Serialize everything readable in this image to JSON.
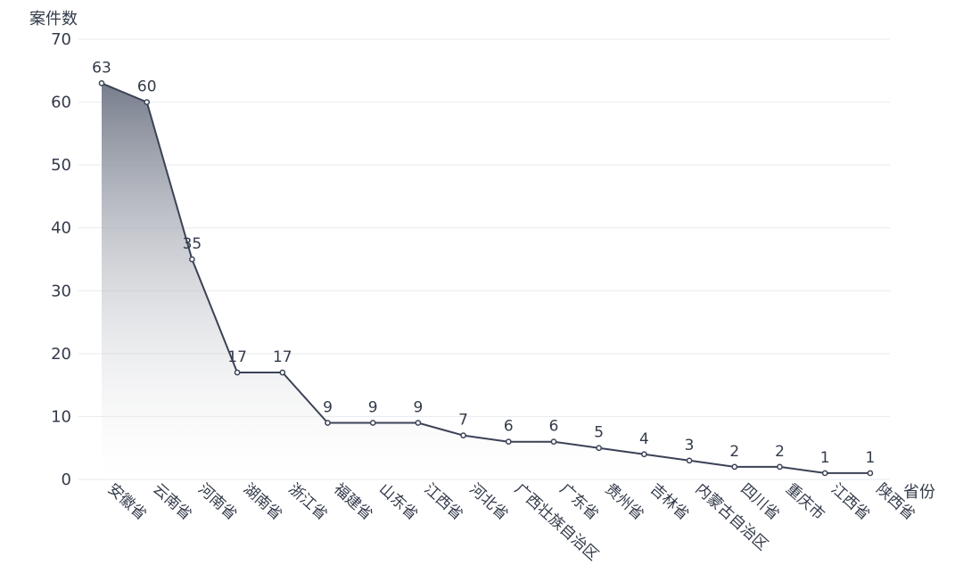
{
  "chart_data": {
    "type": "area",
    "title": "",
    "xlabel": "省份",
    "ylabel": "案件数",
    "ylim": [
      0,
      70
    ],
    "yticks": [
      0,
      10,
      20,
      30,
      40,
      50,
      60,
      70
    ],
    "grid": true,
    "legend": "none",
    "colors": {
      "line": "#3b4256",
      "area_top": "#6b7282",
      "area_bottom": "#ffffff",
      "text": "#333a4a",
      "grid": "#e6e9ee"
    },
    "categories": [
      "安徽省",
      "云南省",
      "河南省",
      "湖南省",
      "浙江省",
      "福建省",
      "山东省",
      "江西省",
      "河北省",
      "广西壮族自治区",
      "广东省",
      "贵州省",
      "吉林省",
      "内蒙古自治区",
      "四川省",
      "重庆市",
      "江西省",
      "陕西省"
    ],
    "series": [
      {
        "values": [
          63,
          60,
          35,
          17,
          17,
          9,
          9,
          9,
          7,
          6,
          6,
          5,
          4,
          3,
          2,
          2,
          1,
          1
        ]
      }
    ]
  }
}
